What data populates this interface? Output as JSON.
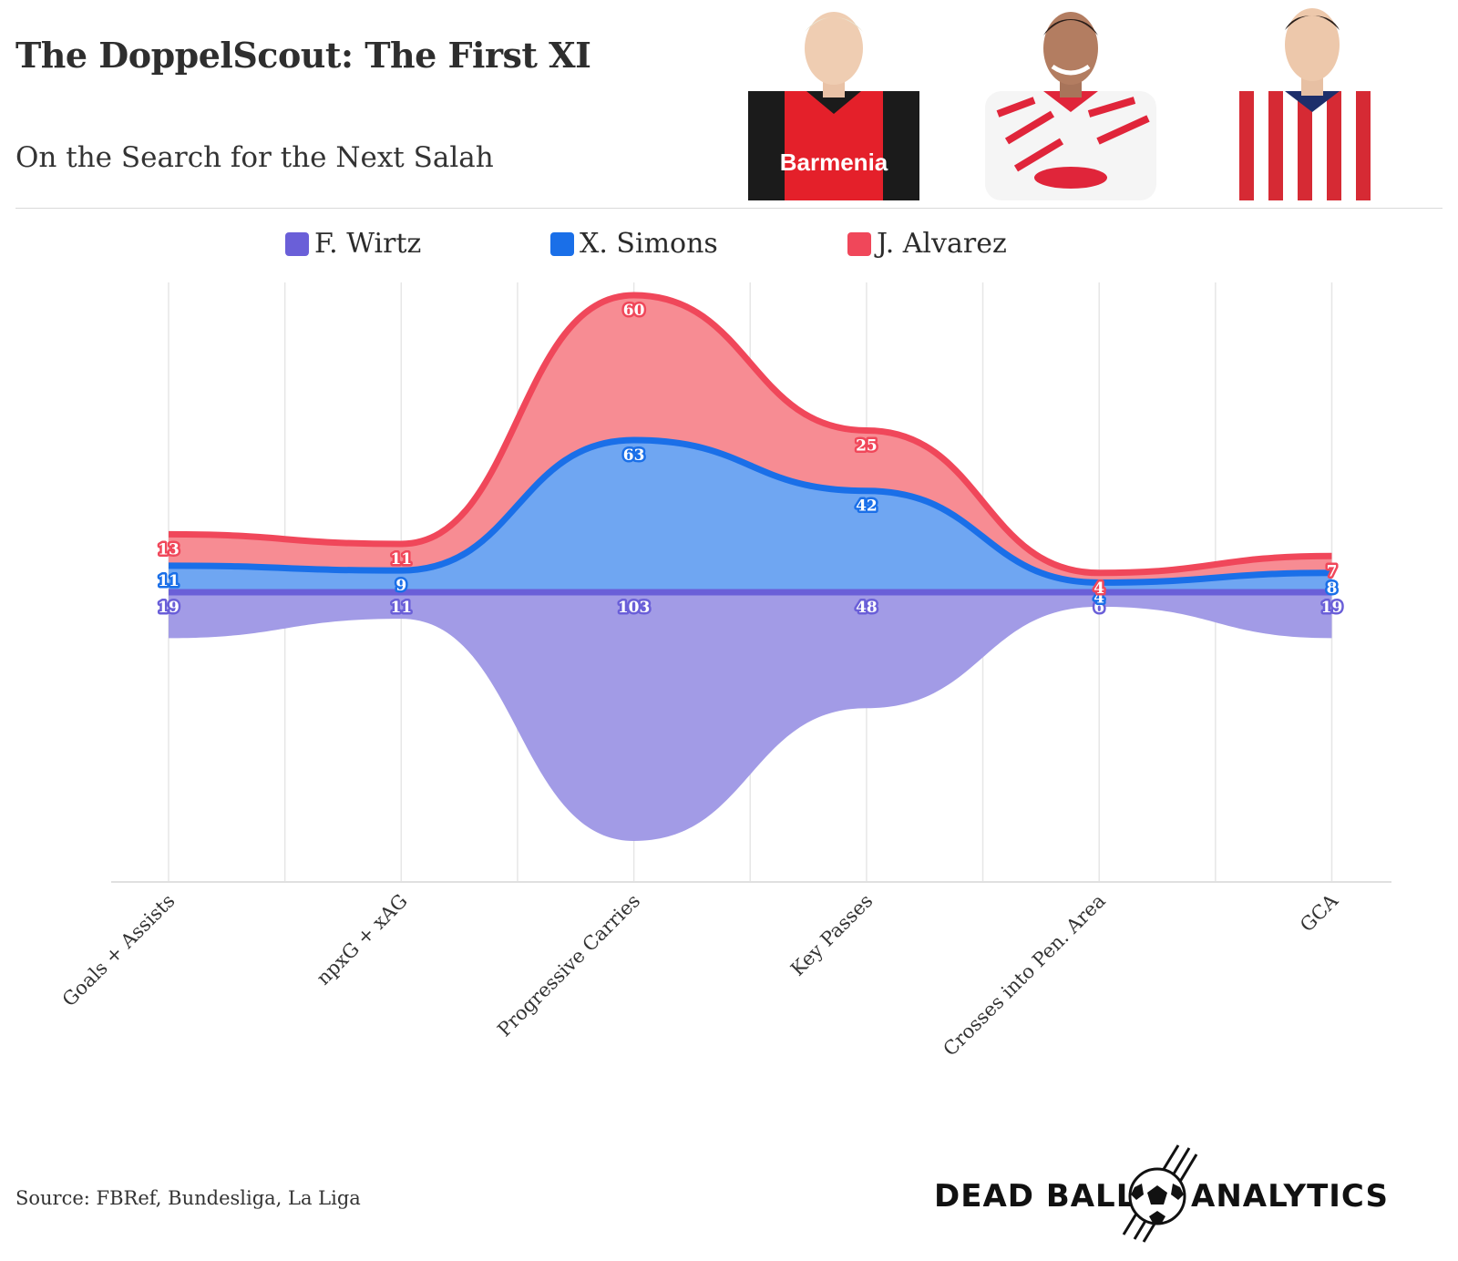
{
  "header": {
    "title": "The DoppelScout: The First XI",
    "subtitle": "On the Search for the Next Salah"
  },
  "players": [
    {
      "name": "F. Wirtz",
      "kit": "Barmenia",
      "shirt_color": "#e4202a"
    },
    {
      "name": "X. Simons",
      "kit": "",
      "shirt_color": "#ffffff"
    },
    {
      "name": "J. Alvarez",
      "kit": "",
      "shirt_color": "#d62a34"
    }
  ],
  "legend": [
    {
      "name": "F. Wirtz",
      "color": "#6a5fd8"
    },
    {
      "name": "X. Simons",
      "color": "#1a6fe8"
    },
    {
      "name": "J. Alvarez",
      "color": "#f0475a"
    }
  ],
  "chart_data": {
    "type": "area",
    "subtype": "streamgraph",
    "categories": [
      "Goals + Assists",
      "npxG + xAG",
      "Progressive Carries",
      "Key Passes",
      "Crosses into Pen. Area",
      "GCA"
    ],
    "series": [
      {
        "name": "F. Wirtz",
        "color": "#6a5fd8",
        "fill": "#a29be6",
        "values": [
          19,
          11,
          103,
          48,
          6,
          19
        ]
      },
      {
        "name": "X. Simons",
        "color": "#1a6fe8",
        "fill": "#6fa6f2",
        "values": [
          11,
          9,
          63,
          42,
          4,
          8
        ]
      },
      {
        "name": "J. Alvarez",
        "color": "#f0475a",
        "fill": "#f78c93",
        "values": [
          13,
          11,
          60,
          25,
          4,
          7
        ]
      }
    ],
    "grid": true,
    "legend_position": "top-center"
  },
  "footer": {
    "source": "Source: FBRef, Bundesliga, La Liga",
    "brand_left": "DEAD BALL",
    "brand_right": "ANALYTICS"
  }
}
